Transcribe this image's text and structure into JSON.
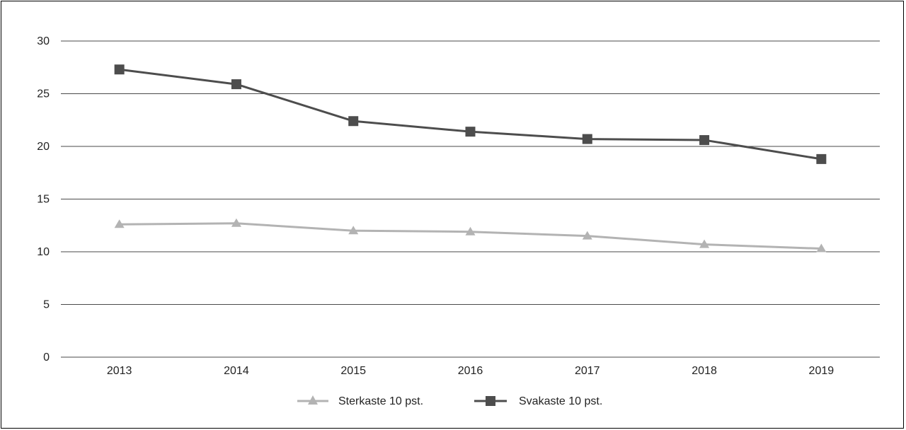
{
  "chart_data": {
    "type": "line",
    "title": "",
    "xlabel": "",
    "ylabel": "",
    "categories": [
      "2013",
      "2014",
      "2015",
      "2016",
      "2017",
      "2018",
      "2019"
    ],
    "ylim": [
      0,
      30
    ],
    "yticks": [
      "0",
      "5",
      "10",
      "15",
      "20",
      "25",
      "30"
    ],
    "grid": true,
    "legend_position": "bottom-center",
    "series": [
      {
        "name": "Sterkaste 10 pst.",
        "values": [
          12.6,
          12.7,
          12.0,
          11.9,
          11.5,
          10.7,
          10.3
        ],
        "color": "#b3b3b3",
        "marker": "triangle"
      },
      {
        "name": "Svakaste 10 pst.",
        "values": [
          27.3,
          25.9,
          22.4,
          21.4,
          20.7,
          20.6,
          18.8
        ],
        "color": "#4d4d4d",
        "marker": "square"
      }
    ]
  }
}
